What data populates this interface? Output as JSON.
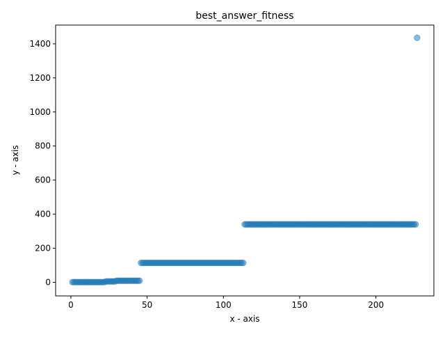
{
  "chart_data": {
    "type": "scatter",
    "title": "best_answer_fitness",
    "xlabel": "x - axis",
    "ylabel": "y - axis",
    "xlim": [
      -10,
      238
    ],
    "ylim": [
      -80,
      1510
    ],
    "xticks": [
      0,
      50,
      100,
      150,
      200
    ],
    "yticks": [
      0,
      200,
      400,
      600,
      800,
      1000,
      1200,
      1400
    ],
    "grid": false,
    "marker_color": "#1f77b4",
    "marker_alpha": 0.5,
    "series": [
      {
        "segments": [
          {
            "x_start": 1,
            "x_end": 22,
            "y": 1
          },
          {
            "x_start": 23,
            "x_end": 29,
            "y": 5
          },
          {
            "x_start": 30,
            "x_end": 45,
            "y": 9
          },
          {
            "x_start": 46,
            "x_end": 113,
            "y": 114
          },
          {
            "x_start": 114,
            "x_end": 226,
            "y": 340
          }
        ],
        "points": [
          {
            "x": 227,
            "y": 1435
          }
        ]
      }
    ]
  }
}
